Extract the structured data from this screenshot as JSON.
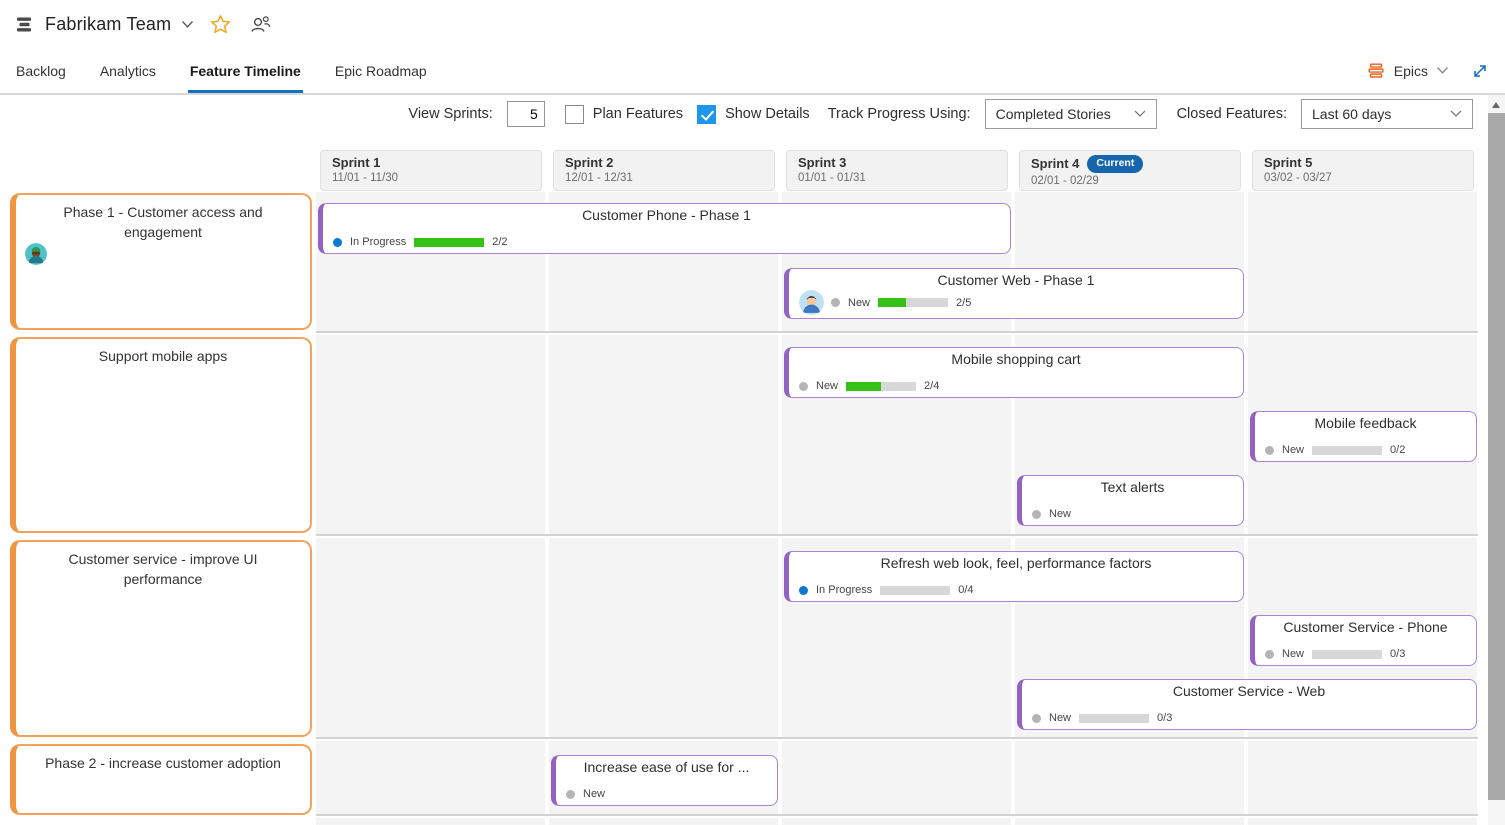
{
  "app": {
    "team_name": "Fabrikam Team"
  },
  "tabs": {
    "items": [
      {
        "label": "Backlog"
      },
      {
        "label": "Analytics"
      },
      {
        "label": "Feature Timeline"
      },
      {
        "label": "Epic Roadmap"
      }
    ],
    "active": "Feature Timeline"
  },
  "level_selector": {
    "label": "Epics"
  },
  "toolbar": {
    "view_sprints_label": "View Sprints:",
    "view_sprints_value": "5",
    "plan_features_label": "Plan Features",
    "plan_features_checked": false,
    "show_details_label": "Show Details",
    "show_details_checked": true,
    "track_progress_label": "Track Progress Using:",
    "track_progress_value": "Completed Stories",
    "closed_features_label": "Closed Features:",
    "closed_features_value": "Last 60 days"
  },
  "sprints": {
    "items": [
      {
        "name": "Sprint 1",
        "dates": "11/01 - 11/30",
        "badge": ""
      },
      {
        "name": "Sprint 2",
        "dates": "12/01 - 12/31",
        "badge": ""
      },
      {
        "name": "Sprint 3",
        "dates": "01/01 - 01/31",
        "badge": ""
      },
      {
        "name": "Sprint 4",
        "dates": "02/01 - 02/29",
        "badge": "Current"
      },
      {
        "name": "Sprint 5",
        "dates": "03/02 - 03/27",
        "badge": ""
      }
    ]
  },
  "epics": {
    "items": [
      {
        "title": "Phase 1 - Customer access and engagement",
        "has_avatar": true
      },
      {
        "title": "Support mobile apps",
        "has_avatar": false
      },
      {
        "title": "Customer service - improve UI performance",
        "has_avatar": false
      },
      {
        "title": "Phase 2 - increase customer adoption",
        "has_avatar": false
      }
    ]
  },
  "features": {
    "items": [
      {
        "title": "Customer Phone - Phase 1",
        "status": "In Progress",
        "progress_done": 2,
        "progress_total": 2,
        "progress_label": "2/2",
        "row": 0,
        "sprint_start": 1,
        "sprint_end": 3
      },
      {
        "title": "Customer Web - Phase 1",
        "status": "New",
        "progress_done": 2,
        "progress_total": 5,
        "progress_label": "2/5",
        "row": 0,
        "sprint_start": 3,
        "sprint_end": 4,
        "has_avatar": true
      },
      {
        "title": "Mobile shopping cart",
        "status": "New",
        "progress_done": 2,
        "progress_total": 4,
        "progress_label": "2/4",
        "row": 1,
        "sprint_start": 3,
        "sprint_end": 4
      },
      {
        "title": "Mobile feedback",
        "status": "New",
        "progress_done": 0,
        "progress_total": 2,
        "progress_label": "0/2",
        "row": 1,
        "sprint_start": 5,
        "sprint_end": 5
      },
      {
        "title": "Text alerts",
        "status": "New",
        "row": 1,
        "sprint_start": 4,
        "sprint_end": 4
      },
      {
        "title": "Refresh web look, feel, performance factors",
        "status": "In Progress",
        "progress_done": 0,
        "progress_total": 4,
        "progress_label": "0/4",
        "row": 2,
        "sprint_start": 3,
        "sprint_end": 4
      },
      {
        "title": "Customer Service - Phone",
        "status": "New",
        "progress_done": 0,
        "progress_total": 3,
        "progress_label": "0/3",
        "row": 2,
        "sprint_start": 5,
        "sprint_end": 5
      },
      {
        "title": "Customer Service - Web",
        "status": "New",
        "progress_done": 0,
        "progress_total": 3,
        "progress_label": "0/3",
        "row": 2,
        "sprint_start": 4,
        "sprint_end": 5
      },
      {
        "title": "Increase ease of use for ...",
        "status": "New",
        "row": 3,
        "sprint_start": 2,
        "sprint_end": 2
      }
    ]
  },
  "colors": {
    "accent_blue": "#1173c3",
    "current_badge_blue": "#1566ad",
    "progress_green": "#36c116",
    "epic_border_orange": "#f0953f",
    "feature_border_purple": "#9263c1",
    "in_progress_dot": "#0e77d1",
    "new_dot": "#b5b5b5"
  }
}
